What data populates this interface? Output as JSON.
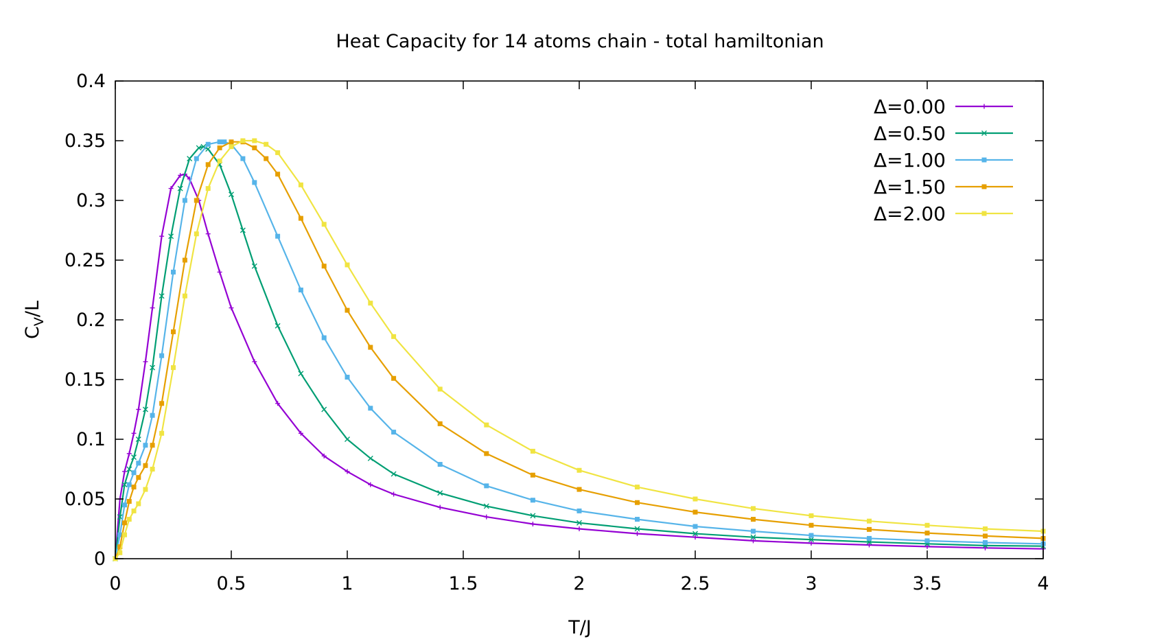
{
  "chart_data": {
    "type": "line",
    "title": "Heat Capacity for 14 atoms chain - total hamiltonian",
    "xlabel": "T/J",
    "ylabel": {
      "main": "C",
      "subscript": "V",
      "suffix": "/L"
    },
    "xlim": [
      0,
      4
    ],
    "ylim": [
      0,
      0.4
    ],
    "xticks": [
      "0",
      "0.5",
      "1",
      "1.5",
      "2",
      "2.5",
      "3",
      "3.5",
      "4"
    ],
    "yticks": [
      "0",
      "0.05",
      "0.1",
      "0.15",
      "0.2",
      "0.25",
      "0.3",
      "0.35",
      "0.4"
    ],
    "grid": false,
    "legend_position": "top-right",
    "series": [
      {
        "name": "Δ=0.00",
        "color": "#9400d3",
        "marker": "plus",
        "x": [
          0,
          0.02,
          0.04,
          0.06,
          0.08,
          0.1,
          0.13,
          0.16,
          0.2,
          0.24,
          0.28,
          0.3,
          0.32,
          0.36,
          0.4,
          0.45,
          0.5,
          0.6,
          0.7,
          0.8,
          0.9,
          1.0,
          1.1,
          1.2,
          1.4,
          1.6,
          1.8,
          2.0,
          2.25,
          2.5,
          2.75,
          3.0,
          3.25,
          3.5,
          3.75,
          4.0
        ],
        "y": [
          0,
          0.05,
          0.073,
          0.088,
          0.105,
          0.125,
          0.165,
          0.21,
          0.27,
          0.31,
          0.321,
          0.322,
          0.318,
          0.3,
          0.272,
          0.24,
          0.21,
          0.165,
          0.13,
          0.105,
          0.086,
          0.073,
          0.062,
          0.054,
          0.043,
          0.035,
          0.029,
          0.025,
          0.021,
          0.018,
          0.015,
          0.013,
          0.0115,
          0.0101,
          0.009,
          0.0082
        ]
      },
      {
        "name": "Δ=0.50",
        "color": "#009e73",
        "marker": "cross",
        "x": [
          0,
          0.02,
          0.04,
          0.06,
          0.08,
          0.1,
          0.13,
          0.16,
          0.2,
          0.24,
          0.28,
          0.32,
          0.36,
          0.38,
          0.4,
          0.45,
          0.5,
          0.55,
          0.6,
          0.7,
          0.8,
          0.9,
          1.0,
          1.1,
          1.2,
          1.4,
          1.6,
          1.8,
          2.0,
          2.25,
          2.5,
          2.75,
          3.0,
          3.25,
          3.5,
          3.75,
          4.0
        ],
        "y": [
          0,
          0.035,
          0.062,
          0.075,
          0.085,
          0.1,
          0.125,
          0.16,
          0.22,
          0.27,
          0.31,
          0.335,
          0.344,
          0.345,
          0.343,
          0.33,
          0.305,
          0.275,
          0.245,
          0.195,
          0.155,
          0.125,
          0.1,
          0.084,
          0.071,
          0.055,
          0.044,
          0.036,
          0.03,
          0.025,
          0.021,
          0.018,
          0.016,
          0.014,
          0.0125,
          0.011,
          0.0105
        ]
      },
      {
        "name": "Δ=1.00",
        "color": "#56b4e9",
        "marker": "square",
        "x": [
          0,
          0.02,
          0.04,
          0.06,
          0.08,
          0.1,
          0.13,
          0.16,
          0.2,
          0.25,
          0.3,
          0.35,
          0.4,
          0.45,
          0.47,
          0.5,
          0.55,
          0.6,
          0.7,
          0.8,
          0.9,
          1.0,
          1.1,
          1.2,
          1.4,
          1.6,
          1.8,
          2.0,
          2.25,
          2.5,
          2.75,
          3.0,
          3.25,
          3.5,
          3.75,
          4.0
        ],
        "y": [
          0,
          0.02,
          0.045,
          0.062,
          0.072,
          0.08,
          0.095,
          0.12,
          0.17,
          0.24,
          0.3,
          0.335,
          0.347,
          0.349,
          0.349,
          0.347,
          0.335,
          0.315,
          0.27,
          0.225,
          0.185,
          0.152,
          0.126,
          0.106,
          0.079,
          0.061,
          0.049,
          0.04,
          0.033,
          0.027,
          0.023,
          0.0195,
          0.017,
          0.015,
          0.0135,
          0.0125
        ]
      },
      {
        "name": "Δ=1.50",
        "color": "#e69f00",
        "marker": "filled-square",
        "x": [
          0,
          0.02,
          0.04,
          0.06,
          0.08,
          0.1,
          0.13,
          0.16,
          0.2,
          0.25,
          0.3,
          0.35,
          0.4,
          0.45,
          0.5,
          0.55,
          0.6,
          0.65,
          0.7,
          0.8,
          0.9,
          1.0,
          1.1,
          1.2,
          1.4,
          1.6,
          1.8,
          2.0,
          2.25,
          2.5,
          2.75,
          3.0,
          3.25,
          3.5,
          3.75,
          4.0
        ],
        "y": [
          0,
          0.01,
          0.03,
          0.048,
          0.06,
          0.068,
          0.078,
          0.095,
          0.13,
          0.19,
          0.25,
          0.3,
          0.33,
          0.344,
          0.349,
          0.349,
          0.344,
          0.335,
          0.322,
          0.285,
          0.245,
          0.208,
          0.177,
          0.151,
          0.113,
          0.088,
          0.07,
          0.058,
          0.047,
          0.039,
          0.033,
          0.028,
          0.0245,
          0.0215,
          0.019,
          0.017
        ]
      },
      {
        "name": "Δ=2.00",
        "color": "#f0e442",
        "marker": "filled-square",
        "x": [
          0,
          0.02,
          0.04,
          0.06,
          0.08,
          0.1,
          0.13,
          0.16,
          0.2,
          0.25,
          0.3,
          0.35,
          0.4,
          0.45,
          0.5,
          0.55,
          0.6,
          0.65,
          0.7,
          0.8,
          0.9,
          1.0,
          1.1,
          1.2,
          1.4,
          1.6,
          1.8,
          2.0,
          2.25,
          2.5,
          2.75,
          3.0,
          3.25,
          3.5,
          3.75,
          4.0
        ],
        "y": [
          0,
          0.005,
          0.02,
          0.033,
          0.04,
          0.046,
          0.058,
          0.075,
          0.105,
          0.16,
          0.22,
          0.272,
          0.31,
          0.333,
          0.345,
          0.35,
          0.35,
          0.347,
          0.34,
          0.313,
          0.28,
          0.246,
          0.214,
          0.186,
          0.142,
          0.112,
          0.09,
          0.074,
          0.06,
          0.05,
          0.042,
          0.036,
          0.0315,
          0.028,
          0.025,
          0.023
        ]
      }
    ]
  }
}
